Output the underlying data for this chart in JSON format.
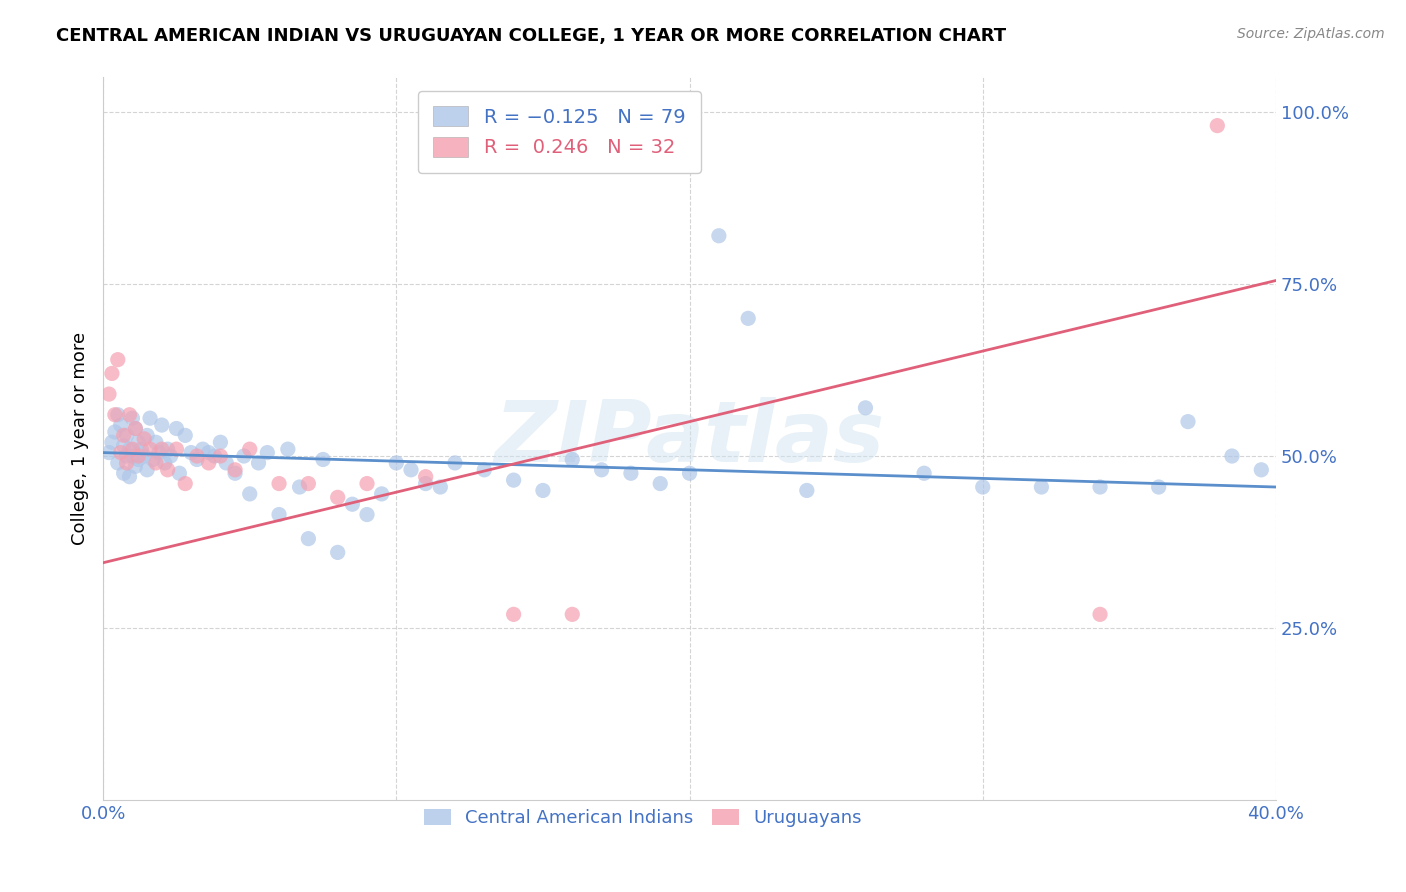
{
  "title": "CENTRAL AMERICAN INDIAN VS URUGUAYAN COLLEGE, 1 YEAR OR MORE CORRELATION CHART",
  "source": "Source: ZipAtlas.com",
  "ylabel": "College, 1 year or more",
  "xlim": [
    0.0,
    0.4
  ],
  "ylim": [
    0.0,
    1.05
  ],
  "xticks": [
    0.0,
    0.1,
    0.2,
    0.3,
    0.4
  ],
  "xticklabels": [
    "0.0%",
    "",
    "",
    "",
    "40.0%"
  ],
  "yticks": [
    0.25,
    0.5,
    0.75,
    1.0
  ],
  "yticklabels": [
    "25.0%",
    "50.0%",
    "75.0%",
    "100.0%"
  ],
  "legend_blue_label": "R = −0.125   N = 79",
  "legend_pink_label": "R =  0.246   N = 32",
  "blue_color": "#aec6e8",
  "pink_color": "#f4a0b0",
  "blue_line_color": "#5b8fcc",
  "pink_line_color": "#e0607a",
  "watermark_text": "ZIPatlas",
  "blue_line_x0": 0.0,
  "blue_line_y0": 0.505,
  "blue_line_x1": 0.4,
  "blue_line_y1": 0.455,
  "pink_line_x0": 0.0,
  "pink_line_y0": 0.345,
  "pink_line_x1": 0.4,
  "pink_line_y1": 0.755,
  "blue_points_x": [
    0.002,
    0.003,
    0.004,
    0.005,
    0.005,
    0.006,
    0.007,
    0.007,
    0.008,
    0.008,
    0.009,
    0.009,
    0.01,
    0.01,
    0.011,
    0.011,
    0.012,
    0.012,
    0.013,
    0.014,
    0.015,
    0.015,
    0.016,
    0.017,
    0.018,
    0.019,
    0.02,
    0.021,
    0.022,
    0.023,
    0.025,
    0.026,
    0.028,
    0.03,
    0.032,
    0.034,
    0.036,
    0.038,
    0.04,
    0.042,
    0.045,
    0.048,
    0.05,
    0.053,
    0.056,
    0.06,
    0.063,
    0.067,
    0.07,
    0.075,
    0.08,
    0.085,
    0.09,
    0.095,
    0.1,
    0.105,
    0.11,
    0.115,
    0.12,
    0.13,
    0.14,
    0.15,
    0.16,
    0.17,
    0.18,
    0.19,
    0.2,
    0.21,
    0.22,
    0.24,
    0.26,
    0.28,
    0.3,
    0.32,
    0.34,
    0.36,
    0.37,
    0.385,
    0.395
  ],
  "blue_points_y": [
    0.505,
    0.52,
    0.535,
    0.56,
    0.49,
    0.545,
    0.515,
    0.475,
    0.53,
    0.5,
    0.51,
    0.47,
    0.555,
    0.5,
    0.54,
    0.485,
    0.52,
    0.495,
    0.51,
    0.5,
    0.53,
    0.48,
    0.555,
    0.495,
    0.52,
    0.505,
    0.545,
    0.49,
    0.51,
    0.5,
    0.54,
    0.475,
    0.53,
    0.505,
    0.495,
    0.51,
    0.505,
    0.5,
    0.52,
    0.49,
    0.475,
    0.5,
    0.445,
    0.49,
    0.505,
    0.415,
    0.51,
    0.455,
    0.38,
    0.495,
    0.36,
    0.43,
    0.415,
    0.445,
    0.49,
    0.48,
    0.46,
    0.455,
    0.49,
    0.48,
    0.465,
    0.45,
    0.495,
    0.48,
    0.475,
    0.46,
    0.475,
    0.82,
    0.7,
    0.45,
    0.57,
    0.475,
    0.455,
    0.455,
    0.455,
    0.455,
    0.55,
    0.5,
    0.48
  ],
  "pink_points_x": [
    0.002,
    0.003,
    0.004,
    0.005,
    0.006,
    0.007,
    0.008,
    0.009,
    0.01,
    0.011,
    0.012,
    0.014,
    0.016,
    0.018,
    0.02,
    0.022,
    0.025,
    0.028,
    0.032,
    0.036,
    0.04,
    0.045,
    0.05,
    0.06,
    0.07,
    0.08,
    0.09,
    0.11,
    0.14,
    0.16,
    0.34,
    0.38
  ],
  "pink_points_y": [
    0.59,
    0.62,
    0.56,
    0.64,
    0.505,
    0.53,
    0.49,
    0.56,
    0.51,
    0.54,
    0.5,
    0.525,
    0.51,
    0.49,
    0.51,
    0.48,
    0.51,
    0.46,
    0.5,
    0.49,
    0.5,
    0.48,
    0.51,
    0.46,
    0.46,
    0.44,
    0.46,
    0.47,
    0.27,
    0.27,
    0.27,
    0.98
  ]
}
